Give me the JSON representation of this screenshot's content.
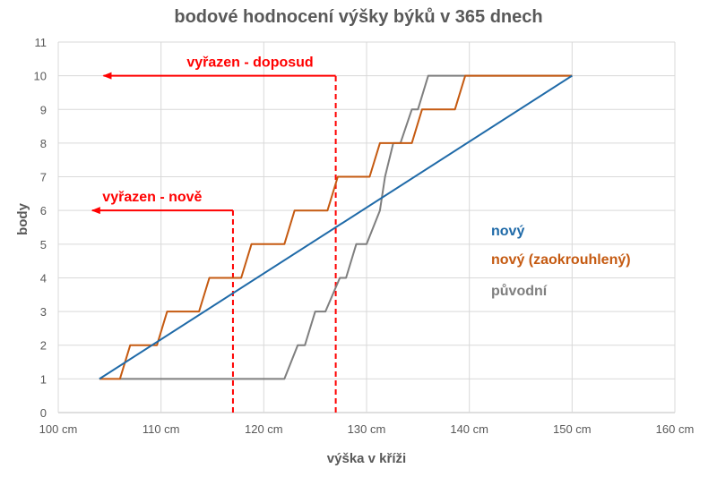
{
  "chart_data": {
    "type": "line",
    "title": "bodové hodnocení výšky býků v 365 dnech",
    "xlabel": "výška v kříži",
    "ylabel": "body",
    "xlim": [
      100,
      160
    ],
    "ylim": [
      0,
      11
    ],
    "x_ticks": [
      100,
      110,
      120,
      130,
      140,
      150,
      160
    ],
    "x_tick_labels": [
      "100 cm",
      "110 cm",
      "120 cm",
      "130 cm",
      "140 cm",
      "150 cm",
      "160 cm"
    ],
    "y_ticks": [
      0,
      1,
      2,
      3,
      4,
      5,
      6,
      7,
      8,
      9,
      10,
      11
    ],
    "y_tick_labels": [
      "0",
      "1",
      "2",
      "3",
      "4",
      "5",
      "6",
      "7",
      "8",
      "9",
      "10",
      "11"
    ],
    "grid": true,
    "legend_position": "right",
    "series": [
      {
        "name": "nový",
        "color": "#1f6aa8",
        "points": [
          [
            104,
            1
          ],
          [
            150,
            10
          ]
        ]
      },
      {
        "name": "nový (zaokrouhlený)",
        "color": "#c55a11",
        "points": [
          [
            104,
            1
          ],
          [
            106,
            1
          ],
          [
            107,
            2
          ],
          [
            109.6,
            2
          ],
          [
            110.6,
            3
          ],
          [
            113.7,
            3
          ],
          [
            114.7,
            4
          ],
          [
            117.8,
            4
          ],
          [
            118.8,
            5
          ],
          [
            122,
            5
          ],
          [
            123,
            6
          ],
          [
            126.2,
            6
          ],
          [
            127.2,
            7
          ],
          [
            130.3,
            7
          ],
          [
            131.3,
            8
          ],
          [
            134.4,
            8
          ],
          [
            135.4,
            9
          ],
          [
            138.6,
            9
          ],
          [
            139.6,
            10
          ],
          [
            150,
            10
          ]
        ]
      },
      {
        "name": "původní",
        "color": "#7f7f7f",
        "points": [
          [
            106,
            1
          ],
          [
            122,
            1
          ],
          [
            123.3,
            2
          ],
          [
            124,
            2
          ],
          [
            125,
            3
          ],
          [
            126,
            3
          ],
          [
            127.4,
            4
          ],
          [
            128,
            4
          ],
          [
            129,
            5
          ],
          [
            130,
            5
          ],
          [
            131.3,
            6
          ],
          [
            131.8,
            7
          ],
          [
            132.6,
            8
          ],
          [
            133.3,
            8
          ],
          [
            134.4,
            9
          ],
          [
            135,
            9
          ],
          [
            136,
            10
          ],
          [
            150,
            10
          ]
        ]
      }
    ],
    "annotations": [
      {
        "label": "vyřazen - doposud",
        "color": "#ff0000",
        "drop_x": 127,
        "level_y": 10,
        "arrow_to_x": 104.4,
        "label_x": 112.5
      },
      {
        "label": "vyřazen - nově",
        "color": "#ff0000",
        "drop_x": 117,
        "level_y": 6,
        "arrow_to_x": 103.3,
        "label_x": 104.3
      }
    ]
  }
}
